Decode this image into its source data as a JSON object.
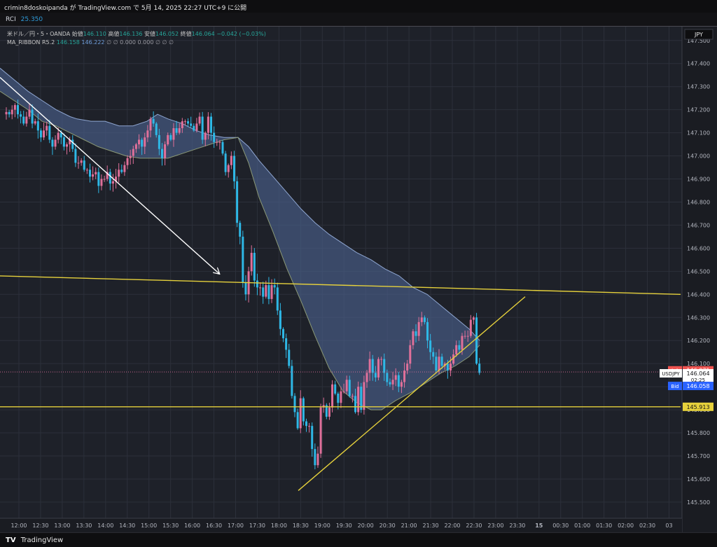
{
  "header": {
    "publish_line": "crimin8doskoipanda が TradingView.com で 5月 14, 2025 22:27 UTC+9 に公開"
  },
  "indicator_bar": {
    "name": "RCI",
    "value": "25.350"
  },
  "legend": {
    "symbol": "米ドル／円・5・OANDA",
    "open_label": "始値",
    "open": "146.110",
    "high_label": "高値",
    "high": "146.136",
    "low_label": "安値",
    "low": "146.052",
    "close_label": "終値",
    "close": "146.064",
    "change": "−0.042 (−0.03%)",
    "ribbon_name": "MA_RIBBON R5.2",
    "ribbon_v1": "146.158",
    "ribbon_v2": "146.222",
    "ribbon_rest": "∅ ∅ 0.000 0.000 ∅ ∅ ∅"
  },
  "footer": {
    "brand": "TradingView",
    "logo": "TV"
  },
  "colors": {
    "background": "#1e2129",
    "grid": "#2c303a",
    "up": "#e0709a",
    "down": "#2eb8e6",
    "ribbon_fill": "#4a5f8a",
    "ribbon_line_top": "#8fa6d1",
    "ribbon_line_bottom": "#8a9876",
    "yellow": "#e6d13c",
    "ask": "#ef5350",
    "bid": "#2962ff"
  },
  "chart_data": {
    "type": "candlestick",
    "currency_label": "JPY",
    "ylim": [
      145.43,
      147.56
    ],
    "y_ticks": [
      "147.500",
      "147.400",
      "147.300",
      "147.200",
      "147.100",
      "147.000",
      "146.900",
      "146.800",
      "146.700",
      "146.600",
      "146.500",
      "146.400",
      "146.300",
      "146.200",
      "146.100",
      "146.000",
      "145.900",
      "145.800",
      "145.700",
      "145.600",
      "145.500"
    ],
    "x_ticks": [
      "12:00",
      "12:30",
      "13:00",
      "13:30",
      "14:00",
      "14:30",
      "15:00",
      "15:30",
      "16:00",
      "16:30",
      "17:00",
      "17:30",
      "18:00",
      "18:30",
      "19:00",
      "19:30",
      "20:00",
      "20:30",
      "21:00",
      "21:30",
      "22:00",
      "22:30",
      "23:00",
      "23:30",
      "15",
      "00:30",
      "01:00",
      "01:30",
      "02:00",
      "02:30",
      "03"
    ],
    "price_tags": {
      "ask_label": "Ask",
      "ask": "146.071",
      "symbol": "USDJPY",
      "last": "146.064",
      "countdown": "02:25",
      "bid_label": "Bid",
      "bid": "146.058",
      "support_level": "145.913"
    },
    "candles_close": [
      147.19,
      147.18,
      147.2,
      147.22,
      147.18,
      147.17,
      147.14,
      147.17,
      147.2,
      147.14,
      147.15,
      147.11,
      147.08,
      147.11,
      147.13,
      147.07,
      147.04,
      147.07,
      147.1,
      147.08,
      147.04,
      147.05,
      147.07,
      147.03,
      146.97,
      146.97,
      146.98,
      146.94,
      146.94,
      146.91,
      146.92,
      146.93,
      146.87,
      146.9,
      146.9,
      146.93,
      146.88,
      146.89,
      146.91,
      146.94,
      146.93,
      146.96,
      146.99,
      147.0,
      147.03,
      147.05,
      147.07,
      147.04,
      147.08,
      147.11,
      147.16,
      147.14,
      147.09,
      147.03,
      146.99,
      147.05,
      147.09,
      147.07,
      147.12,
      147.1,
      147.12,
      147.15,
      147.15,
      147.14,
      147.13,
      147.11,
      147.14,
      147.17,
      147.07,
      147.1,
      147.17,
      147.1,
      147.06,
      147.06,
      147.06,
      147.01,
      146.93,
      146.96,
      147.0,
      146.89,
      146.71,
      146.65,
      146.45,
      146.4,
      146.5,
      146.58,
      146.46,
      146.43,
      146.43,
      146.39,
      146.44,
      146.38,
      146.44,
      146.43,
      146.33,
      146.25,
      146.21,
      146.16,
      146.09,
      145.96,
      145.89,
      145.82,
      145.95,
      145.85,
      145.83,
      145.83,
      145.73,
      145.66,
      145.71,
      145.91,
      145.92,
      145.87,
      145.91,
      146.01,
      145.97,
      145.93,
      145.98,
      145.98,
      146.03,
      145.96,
      145.96,
      145.89,
      146.0,
      145.9,
      146.02,
      146.06,
      146.12,
      146.06,
      146.04,
      146.12,
      146.12,
      146.06,
      146.02,
      146.01,
      146.03,
      146.05,
      146.0,
      146.02,
      146.07,
      146.1,
      146.18,
      146.24,
      146.22,
      146.28,
      146.3,
      146.28,
      146.2,
      146.15,
      146.13,
      146.07,
      146.13,
      146.09,
      146.1,
      146.07,
      146.1,
      146.14,
      146.18,
      146.16,
      146.22,
      146.22,
      146.22,
      146.29,
      146.3,
      146.1,
      146.06
    ],
    "ribbon_upper": [
      [
        0,
        147.38
      ],
      [
        20,
        147.33
      ],
      [
        40,
        147.28
      ],
      [
        60,
        147.24
      ],
      [
        80,
        147.2
      ],
      [
        100,
        147.17
      ],
      [
        110,
        147.16
      ],
      [
        130,
        147.15
      ],
      [
        150,
        147.15
      ],
      [
        170,
        147.13
      ],
      [
        190,
        147.13
      ],
      [
        210,
        147.15
      ],
      [
        225,
        147.18
      ],
      [
        240,
        147.16
      ],
      [
        260,
        147.14
      ],
      [
        280,
        147.11
      ],
      [
        300,
        147.09
      ],
      [
        320,
        147.08
      ],
      [
        340,
        147.08
      ],
      [
        355,
        147.04
      ],
      [
        370,
        146.98
      ],
      [
        390,
        146.91
      ],
      [
        410,
        146.84
      ],
      [
        430,
        146.77
      ],
      [
        450,
        146.71
      ],
      [
        470,
        146.66
      ],
      [
        490,
        146.62
      ],
      [
        510,
        146.58
      ],
      [
        530,
        146.55
      ],
      [
        550,
        146.51
      ],
      [
        570,
        146.48
      ],
      [
        590,
        146.43
      ],
      [
        610,
        146.4
      ],
      [
        630,
        146.35
      ],
      [
        650,
        146.3
      ],
      [
        670,
        146.25
      ],
      [
        685,
        146.2
      ]
    ],
    "ribbon_lower": [
      [
        0,
        147.28
      ],
      [
        20,
        147.24
      ],
      [
        40,
        147.2
      ],
      [
        60,
        147.15
      ],
      [
        80,
        147.13
      ],
      [
        100,
        147.1
      ],
      [
        120,
        147.07
      ],
      [
        140,
        147.04
      ],
      [
        160,
        147.02
      ],
      [
        180,
        147.0
      ],
      [
        200,
        146.99
      ],
      [
        220,
        146.99
      ],
      [
        240,
        146.99
      ],
      [
        260,
        147.01
      ],
      [
        280,
        147.03
      ],
      [
        300,
        147.05
      ],
      [
        320,
        147.07
      ],
      [
        340,
        147.08
      ],
      [
        355,
        146.97
      ],
      [
        370,
        146.82
      ],
      [
        390,
        146.67
      ],
      [
        410,
        146.51
      ],
      [
        430,
        146.37
      ],
      [
        450,
        146.22
      ],
      [
        470,
        146.08
      ],
      [
        490,
        145.98
      ],
      [
        510,
        145.93
      ],
      [
        530,
        145.9
      ],
      [
        545,
        145.9
      ],
      [
        565,
        145.94
      ],
      [
        590,
        145.98
      ],
      [
        610,
        146.02
      ],
      [
        630,
        146.06
      ],
      [
        650,
        146.09
      ],
      [
        670,
        146.13
      ],
      [
        685,
        146.18
      ]
    ],
    "trend_lines": [
      {
        "from": [
          0,
          147.34
        ],
        "to": [
          313,
          146.49
        ],
        "color": "white",
        "arrow": true
      },
      {
        "from": [
          0,
          146.48
        ],
        "to": [
          972,
          146.4
        ],
        "color": "yellow"
      },
      {
        "from": [
          0,
          145.913
        ],
        "to": [
          972,
          145.913
        ],
        "color": "yellow"
      },
      {
        "from": [
          426,
          145.55
        ],
        "to": [
          750,
          146.39
        ],
        "color": "yellow"
      }
    ]
  }
}
